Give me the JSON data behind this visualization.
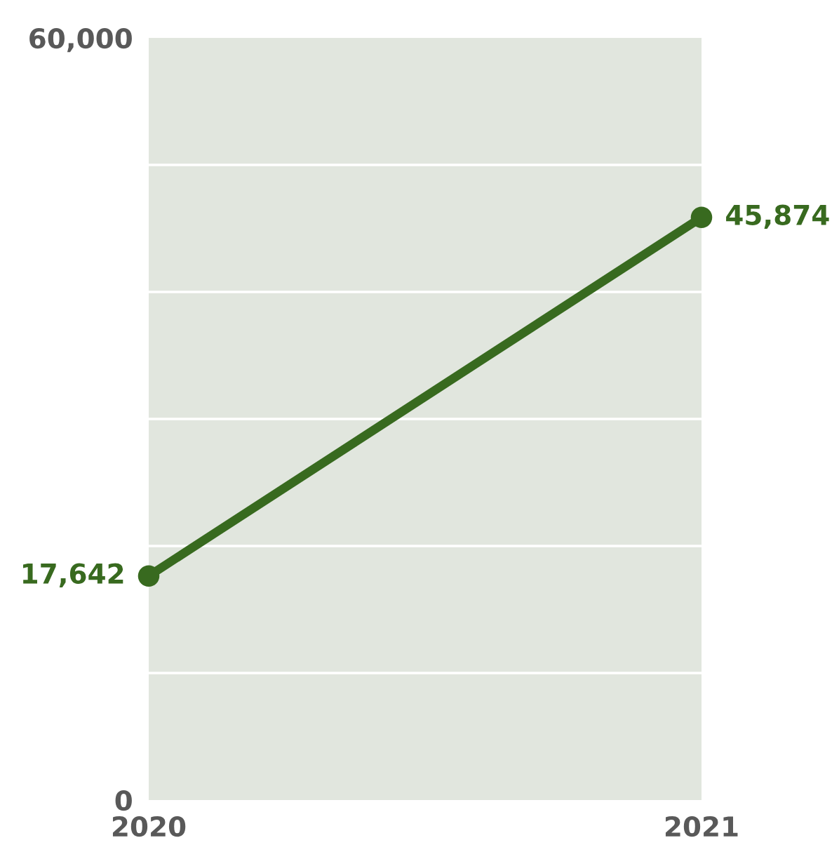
{
  "chart_data": {
    "type": "line",
    "categories": [
      "2020",
      "2021"
    ],
    "series": [
      {
        "color": "#386a1f",
        "values": [
          17642,
          45874
        ],
        "value_labels": [
          "17,642",
          "45,874"
        ]
      }
    ],
    "ylim": [
      0,
      60000
    ],
    "yticks": [
      {
        "value": 0,
        "label": "0"
      },
      {
        "value": 60000,
        "label": "60,000"
      }
    ],
    "bands": [
      {
        "axis": "y",
        "from": 0,
        "to": 60000,
        "color": "#e1e6de"
      }
    ],
    "ref_lines": [
      {
        "axis": "y",
        "value": 10000,
        "color": "#ffffff"
      },
      {
        "axis": "y",
        "value": 20000,
        "color": "#ffffff"
      },
      {
        "axis": "y",
        "value": 30000,
        "color": "#ffffff"
      },
      {
        "axis": "y",
        "value": 40000,
        "color": "#ffffff"
      },
      {
        "axis": "y",
        "value": 50000,
        "color": "#ffffff"
      }
    ],
    "marker": "circle",
    "line_style": "solid",
    "legend": false
  }
}
